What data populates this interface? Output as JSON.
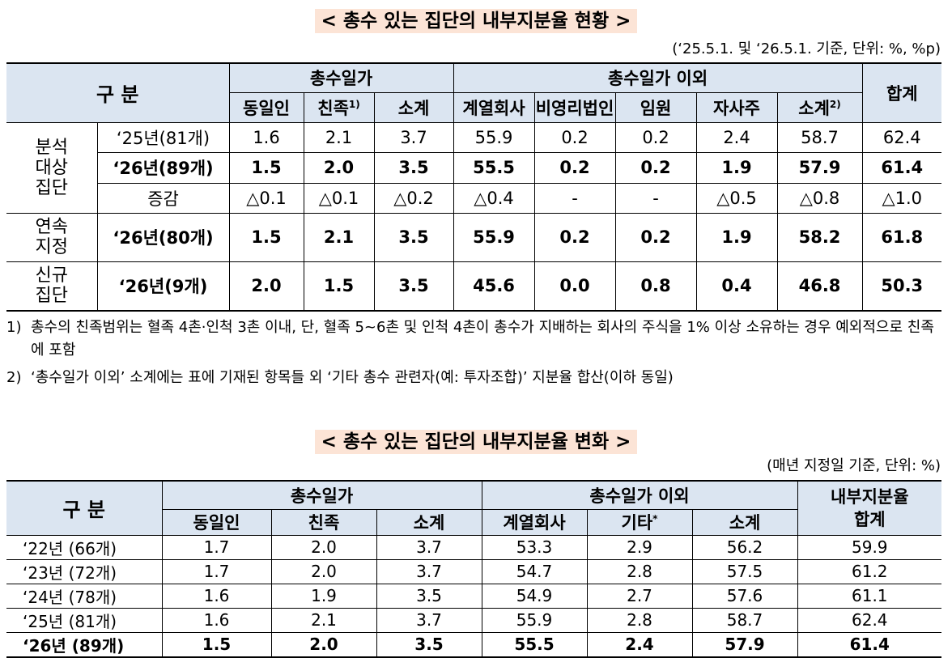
{
  "table1": {
    "title": "< 총수 있는 집단의 내부지분율 현황 >",
    "note": "(‘25.5.1. 및 ‘26.5.1. 기준, 단위: %, %p)",
    "header": {
      "group": "구 분",
      "owner_family": "총수일가",
      "others": "총수일가 이외",
      "total": "합계",
      "columns": [
        "동일인",
        {
          "label": "친족",
          "sup": "1)"
        },
        "소계",
        "계열회사",
        "비영리법인",
        "임원",
        "자사주",
        {
          "label": "소계",
          "sup": "2)"
        }
      ]
    },
    "groups": [
      {
        "label": [
          "분석",
          "대상",
          "집단"
        ],
        "rows": [
          {
            "label": "‘25년(81개)",
            "bold": false,
            "values": [
              "1.6",
              "2.1",
              "3.7",
              "55.9",
              "0.2",
              "0.2",
              "2.4",
              "58.7",
              "62.4"
            ]
          },
          {
            "label": "‘26년(89개)",
            "bold": true,
            "values": [
              "1.5",
              "2.0",
              "3.5",
              "55.5",
              "0.2",
              "0.2",
              "1.9",
              "57.9",
              "61.4"
            ]
          },
          {
            "label": "증감",
            "bold": false,
            "values": [
              "△0.1",
              "△0.1",
              "△0.2",
              "△0.4",
              "-",
              "-",
              "△0.5",
              "△0.8",
              "△1.0"
            ]
          }
        ]
      },
      {
        "label": [
          "연속",
          "지정"
        ],
        "rows": [
          {
            "label": "‘26년(80개)",
            "bold": true,
            "values": [
              "1.5",
              "2.1",
              "3.5",
              "55.9",
              "0.2",
              "0.2",
              "1.9",
              "58.2",
              "61.8"
            ]
          }
        ]
      },
      {
        "label": [
          "신규",
          "집단"
        ],
        "rows": [
          {
            "label": "‘26년(9개)",
            "bold": true,
            "values": [
              "2.0",
              "1.5",
              "3.5",
              "45.6",
              "0.0",
              "0.8",
              "0.4",
              "46.8",
              "50.3"
            ]
          }
        ]
      }
    ],
    "footnotes": [
      {
        "mark": "1)",
        "text": "총수의 친족범위는 혈족 4촌·인척 3촌 이내, 단, 혈족 5~6촌 및 인척 4촌이 총수가 지배하는 회사의 주식을 1% 이상 소유하는 경우 예외적으로 친족에 포함"
      },
      {
        "mark": "2)",
        "text": "‘총수일가 이외’ 소계에는 표에 기재된 항목들 외 ‘기타 총수 관련자(예: 투자조합)’ 지분율 합산(이하 동일)"
      }
    ]
  },
  "table2": {
    "title": "< 총수 있는 집단의 내부지분율 변화 >",
    "note": "(매년 지정일 기준, 단위: %)",
    "header": {
      "group": "구 분",
      "owner_family": "총수일가",
      "others": "총수일가 이외",
      "total": [
        "내부지분율",
        "합계"
      ],
      "columns": [
        "동일인",
        "친족",
        "소계",
        "계열회사",
        {
          "label": "기타",
          "sup": "*"
        },
        "소계"
      ]
    },
    "rows": [
      {
        "label": "‘22년 (66개)",
        "bold": false,
        "values": [
          "1.7",
          "2.0",
          "3.7",
          "53.3",
          "2.9",
          "56.2",
          "59.9"
        ]
      },
      {
        "label": "‘23년 (72개)",
        "bold": false,
        "values": [
          "1.7",
          "2.0",
          "3.7",
          "54.7",
          "2.8",
          "57.5",
          "61.2"
        ]
      },
      {
        "label": "‘24년 (78개)",
        "bold": false,
        "values": [
          "1.6",
          "1.9",
          "3.5",
          "54.9",
          "2.7",
          "57.6",
          "61.1"
        ]
      },
      {
        "label": "‘25년 (81개)",
        "bold": false,
        "values": [
          "1.6",
          "2.1",
          "3.7",
          "55.9",
          "2.8",
          "58.7",
          "62.4"
        ]
      },
      {
        "label": "‘26년 (89개)",
        "bold": true,
        "values": [
          "1.5",
          "2.0",
          "3.5",
          "55.5",
          "2.4",
          "57.9",
          "61.4"
        ]
      }
    ]
  }
}
